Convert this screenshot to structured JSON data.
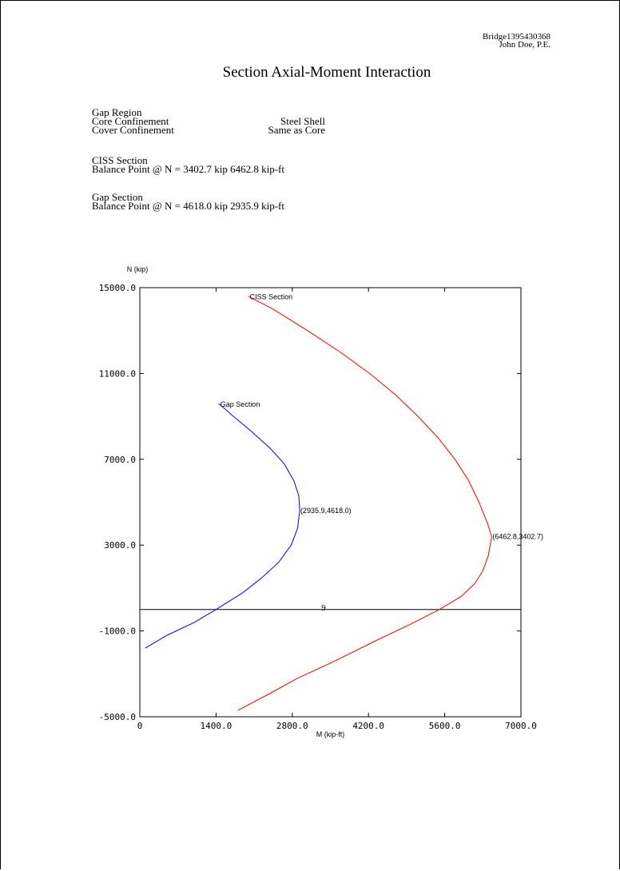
{
  "header": {
    "job_id": "Bridge1395430368",
    "engineer": "John Doe, P.E."
  },
  "page_title": "Section Axial-Moment Interaction",
  "info": {
    "region": "Gap Region",
    "core_label": "Core Confinement",
    "core_value": "Steel Shell",
    "cover_label": "Cover Confinement",
    "cover_value": "Same as Core",
    "ciss_title": "CISS Section",
    "ciss_balance": "Balance Point @ N = 3402.7 kip  6462.8 kip-ft",
    "gap_title": "Gap Section",
    "gap_balance": "Balance Point @ N = 4618.0 kip  2935.9 kip-ft"
  },
  "page_number": "9",
  "colors": {
    "ciss": "#ff0000",
    "gap": "#0000ff",
    "axis": "#000000"
  },
  "chart_data": {
    "type": "line",
    "xlabel": "M (kip-ft)",
    "ylabel": "N (kip)",
    "xlim": [
      0,
      7000
    ],
    "ylim": [
      -5000,
      15000
    ],
    "x_ticks": [
      0,
      1400,
      2800,
      4200,
      5600,
      7000
    ],
    "x_tick_labels": [
      "0",
      "1400.0",
      "2800.0",
      "4200.0",
      "5600.0",
      "7000.0"
    ],
    "y_ticks": [
      -5000,
      -1000,
      3000,
      7000,
      11000,
      15000
    ],
    "y_tick_labels": [
      "-5000.0",
      "-1000.0",
      "3000.0",
      "7000.0",
      "11000.0",
      "15000.0"
    ],
    "reference_line_y": 0,
    "series": [
      {
        "name": "CISS Section",
        "color": "#ff0000",
        "points": [
          [
            1990,
            14600
          ],
          [
            2450,
            14000
          ],
          [
            3080,
            13000
          ],
          [
            3680,
            12000
          ],
          [
            4220,
            11000
          ],
          [
            4700,
            10000
          ],
          [
            5110,
            9000
          ],
          [
            5480,
            8000
          ],
          [
            5790,
            7000
          ],
          [
            6040,
            6000
          ],
          [
            6230,
            5000
          ],
          [
            6390,
            4000
          ],
          [
            6462.8,
            3402.7
          ],
          [
            6400,
            2500
          ],
          [
            6300,
            1800
          ],
          [
            6150,
            1200
          ],
          [
            5900,
            600
          ],
          [
            5500,
            0
          ],
          [
            5000,
            -650
          ],
          [
            4300,
            -1500
          ],
          [
            3500,
            -2500
          ],
          [
            2900,
            -3200
          ],
          [
            2400,
            -3900
          ],
          [
            1800,
            -4700
          ]
        ],
        "label_point": [
          1990,
          14600
        ],
        "annotation": "(6462.8,3402.7)",
        "annotation_point": [
          6462.8,
          3402.7
        ]
      },
      {
        "name": "Gap Section",
        "color": "#0000ff",
        "points": [
          [
            1450,
            9600
          ],
          [
            1720,
            9000
          ],
          [
            2050,
            8300
          ],
          [
            2400,
            7500
          ],
          [
            2650,
            6800
          ],
          [
            2830,
            6000
          ],
          [
            2920,
            5300
          ],
          [
            2935.9,
            4618
          ],
          [
            2900,
            3800
          ],
          [
            2780,
            3000
          ],
          [
            2550,
            2200
          ],
          [
            2250,
            1500
          ],
          [
            1900,
            800
          ],
          [
            1400,
            0
          ],
          [
            1000,
            -600
          ],
          [
            500,
            -1200
          ],
          [
            100,
            -1800
          ]
        ],
        "label_point": [
          1450,
          9600
        ],
        "annotation": "(2935.9,4618.0)",
        "annotation_point": [
          2935.9,
          4618
        ]
      }
    ]
  }
}
